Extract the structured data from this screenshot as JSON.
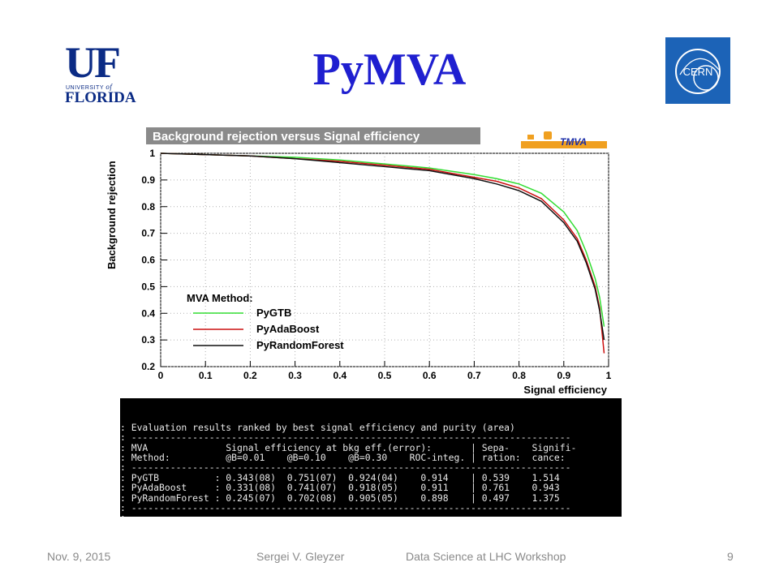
{
  "slide": {
    "title": "PyMVA",
    "footer": {
      "date": "Nov. 9, 2015",
      "author": "Sergei V. Gleyzer",
      "event": "Data Science at LHC Workshop",
      "page": "9"
    }
  },
  "logos": {
    "uf": {
      "mark": "UF",
      "university": "UNIVERSITY",
      "of": "of",
      "florida": "FLORIDA",
      "color": "#0b2b85"
    },
    "cern": {
      "text": "CERN",
      "background": "#1c63b7"
    },
    "tmva": {
      "text": "TMVA"
    }
  },
  "colors": {
    "title": "#1f1fd0",
    "pygtb": "#33dd33",
    "pyadaboost": "#cc1111",
    "pyrandomforest": "#111111"
  },
  "chart_data": {
    "type": "line",
    "title": "Background rejection versus Signal efficiency",
    "xlabel": "Signal efficiency",
    "ylabel": "Background rejection",
    "xlim": [
      0,
      1
    ],
    "ylim": [
      0.2,
      1
    ],
    "grid": true,
    "xticks": [
      "0",
      "0.1",
      "0.2",
      "0.3",
      "0.4",
      "0.5",
      "0.6",
      "0.7",
      "0.8",
      "0.9",
      "1"
    ],
    "yticks": [
      "0.2",
      "0.3",
      "0.4",
      "0.5",
      "0.6",
      "0.7",
      "0.8",
      "0.9",
      "1"
    ],
    "legend": {
      "title": "MVA Method:",
      "placement": "bottom-left"
    },
    "series": [
      {
        "name": "PyGTB",
        "color": "#33dd33",
        "x": [
          0,
          0.1,
          0.2,
          0.3,
          0.4,
          0.5,
          0.6,
          0.7,
          0.75,
          0.8,
          0.85,
          0.9,
          0.93,
          0.95,
          0.97,
          0.98,
          0.99
        ],
        "y": [
          1.0,
          0.995,
          0.99,
          0.985,
          0.975,
          0.96,
          0.945,
          0.92,
          0.905,
          0.885,
          0.85,
          0.78,
          0.71,
          0.63,
          0.53,
          0.46,
          0.35
        ]
      },
      {
        "name": "PyAdaBoost",
        "color": "#cc1111",
        "x": [
          0,
          0.1,
          0.2,
          0.3,
          0.4,
          0.5,
          0.6,
          0.7,
          0.75,
          0.8,
          0.85,
          0.9,
          0.93,
          0.95,
          0.97,
          0.98,
          0.99
        ],
        "y": [
          1.0,
          0.995,
          0.99,
          0.98,
          0.97,
          0.955,
          0.94,
          0.91,
          0.895,
          0.87,
          0.83,
          0.75,
          0.68,
          0.6,
          0.5,
          0.42,
          0.25
        ]
      },
      {
        "name": "PyRandomForest",
        "color": "#111111",
        "x": [
          0,
          0.1,
          0.2,
          0.3,
          0.4,
          0.5,
          0.6,
          0.7,
          0.75,
          0.8,
          0.85,
          0.9,
          0.93,
          0.95,
          0.97,
          0.98,
          0.99
        ],
        "y": [
          1.0,
          0.995,
          0.99,
          0.98,
          0.965,
          0.95,
          0.935,
          0.905,
          0.885,
          0.86,
          0.82,
          0.74,
          0.67,
          0.59,
          0.49,
          0.41,
          0.3
        ]
      }
    ]
  },
  "console": {
    "lines": [
      ": Evaluation results ranked by best signal efficiency and purity (area)",
      ": -------------------------------------------------------------------------------",
      ": MVA              Signal efficiency at bkg eff.(error):       | Sepa-    Signifi-",
      ": Method:          @B=0.01    @B=0.10    @B=0.30    ROC-integ. | ration:  cance:",
      ": -------------------------------------------------------------------------------",
      ": PyGTB          : 0.343(08)  0.751(07)  0.924(04)    0.914    | 0.539    1.514",
      ": PyAdaBoost     : 0.331(08)  0.741(07)  0.918(05)    0.911    | 0.761    0.943",
      ": PyRandomForest : 0.245(07)  0.702(08)  0.905(05)    0.898    | 0.497    1.375",
      ": -------------------------------------------------------------------------------",
      ":"
    ]
  }
}
